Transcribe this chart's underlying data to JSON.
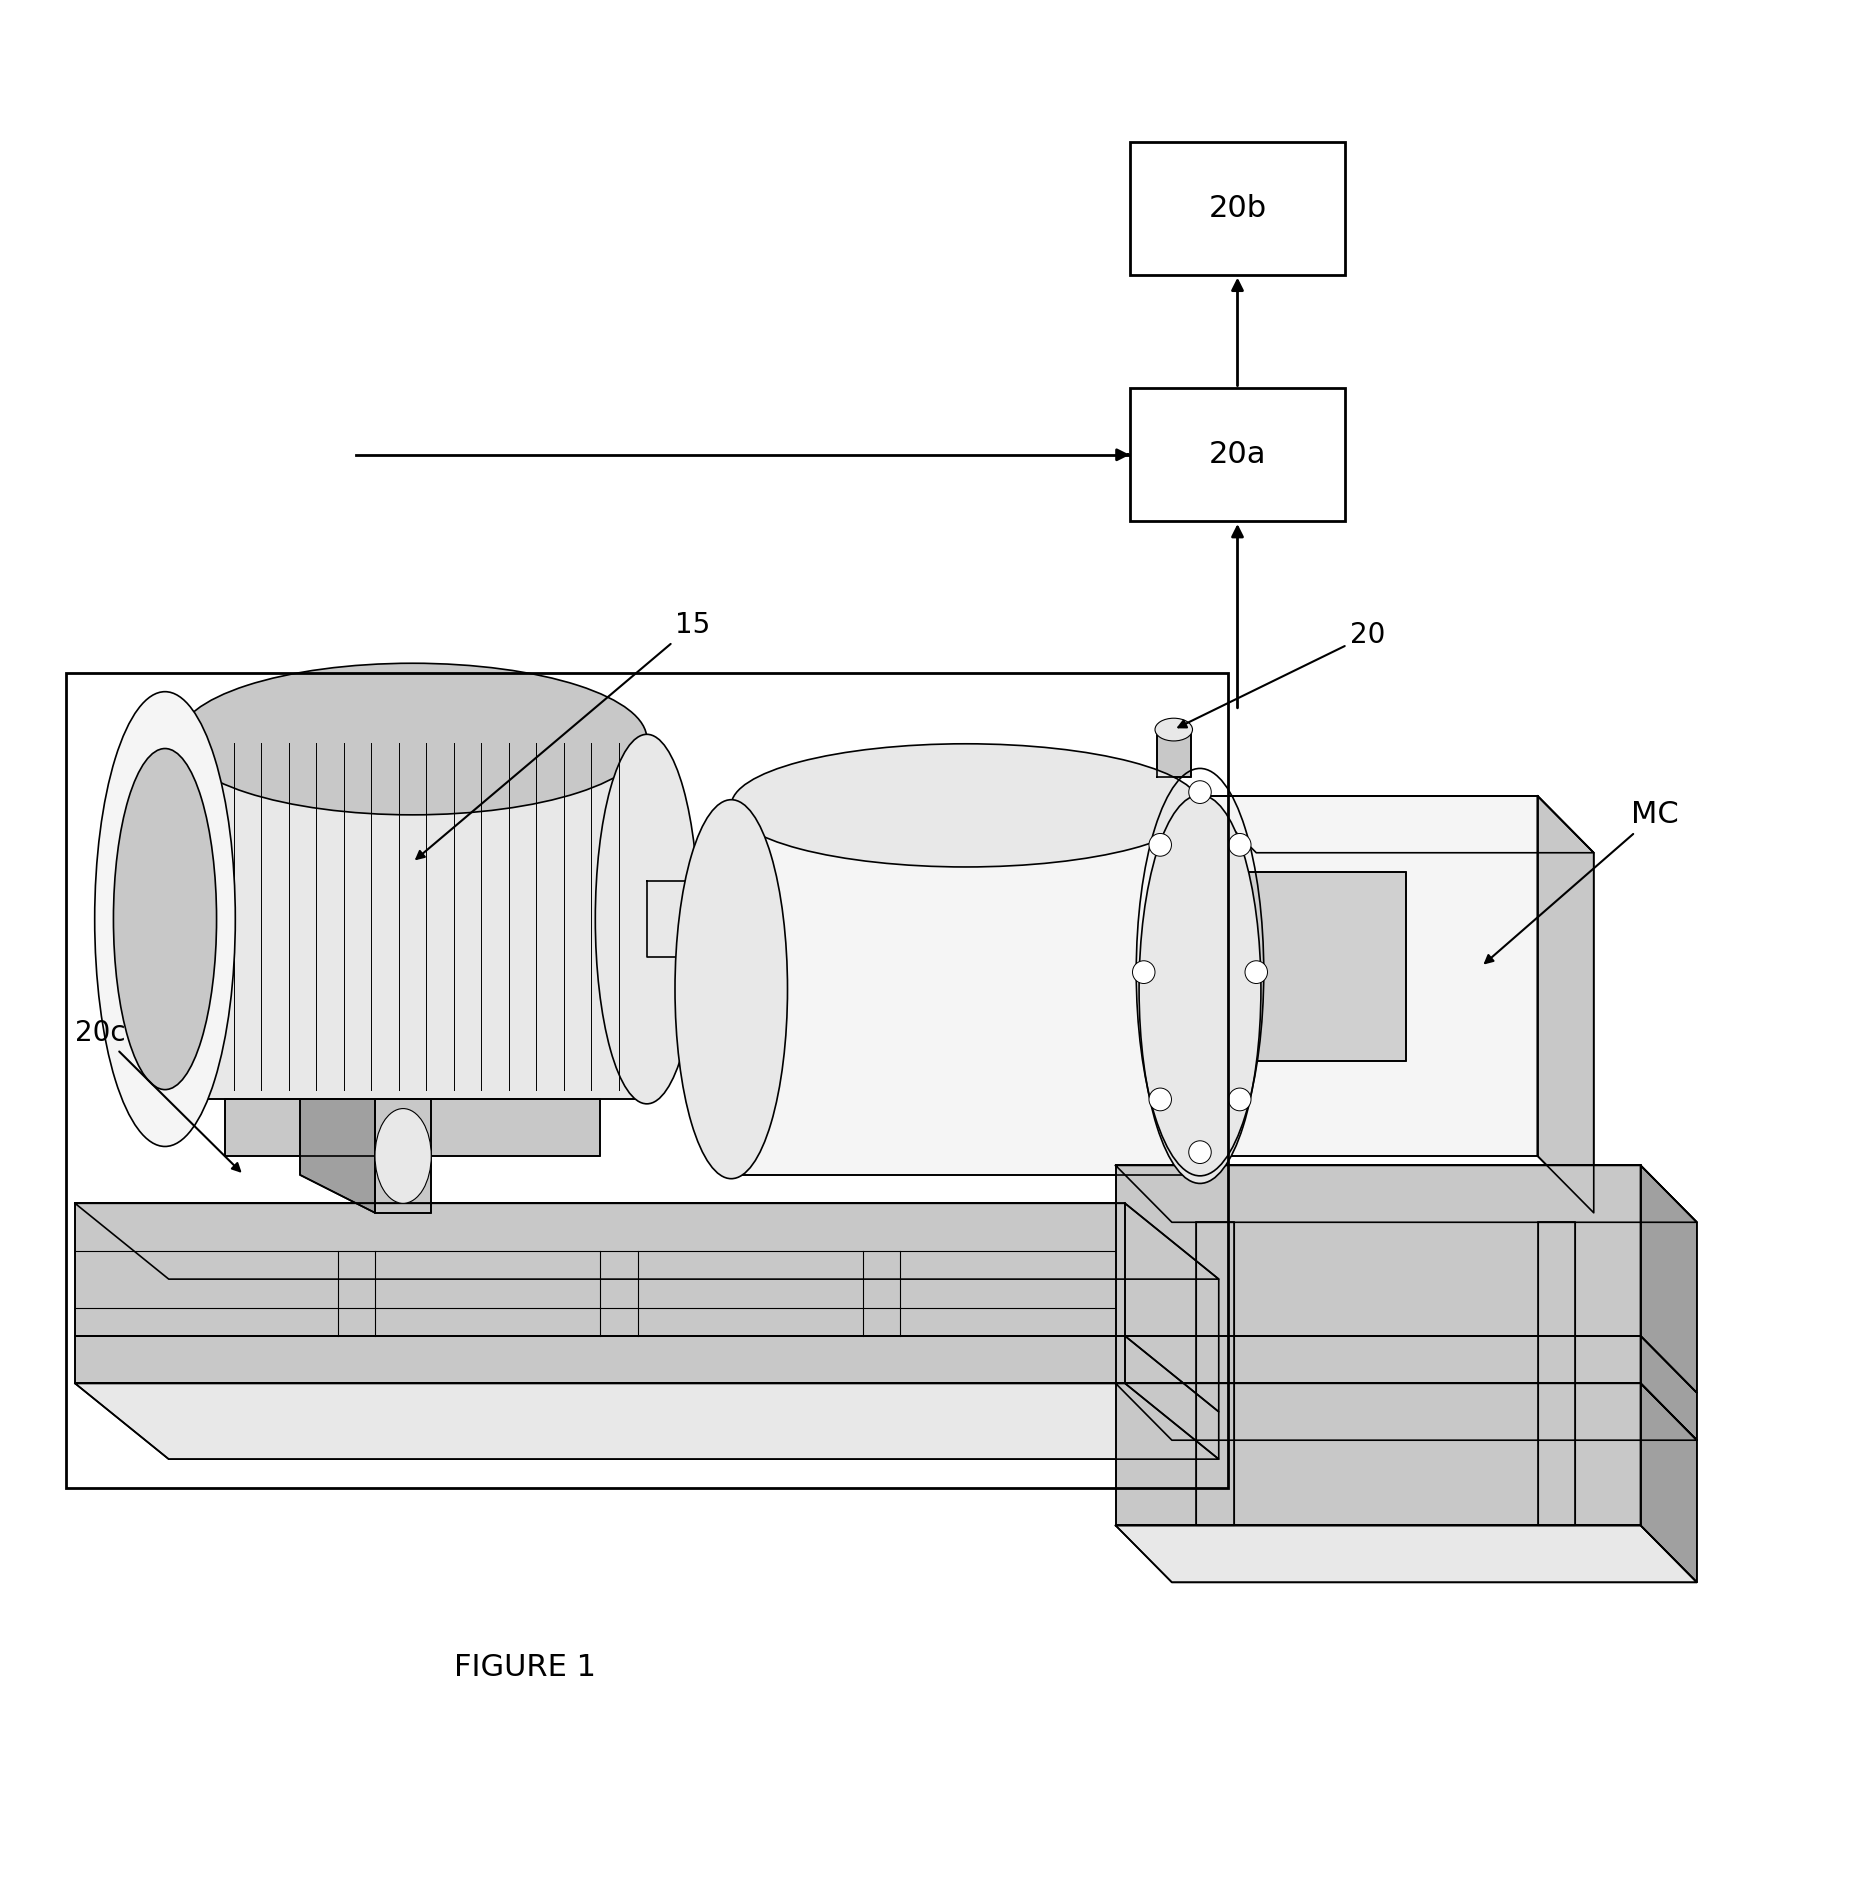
{
  "bg_color": "#ffffff",
  "line_color": "#000000",
  "figure_label": "FIGURE 1",
  "box_20b_label": "20b",
  "box_20a_label": "20a",
  "label_15": "15",
  "label_20": "20",
  "label_20c": "20c",
  "label_MC": "MC",
  "font_size_box": 22,
  "font_size_labels": 20,
  "font_size_figure": 22
}
